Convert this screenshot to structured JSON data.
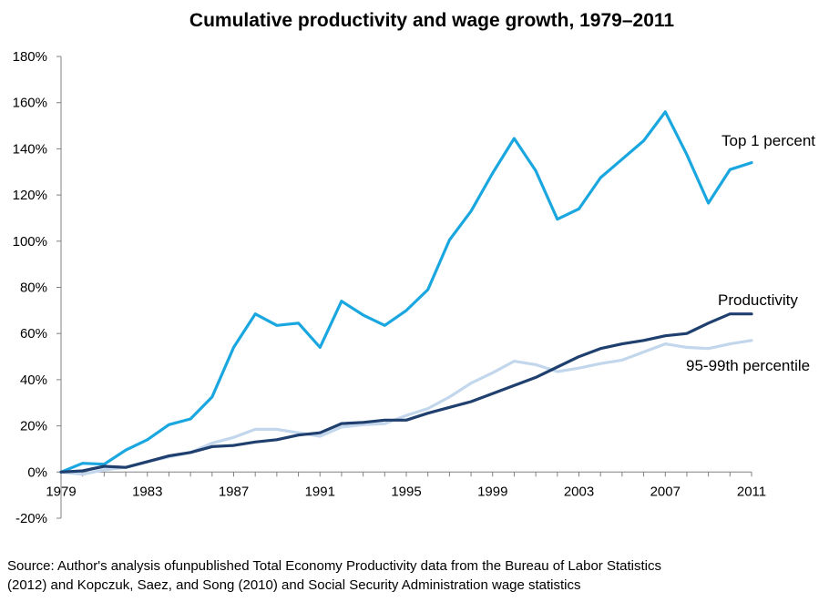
{
  "chart_data": {
    "type": "line",
    "title": "Cumulative productivity and wage growth, 1979–2011",
    "xlabel": "",
    "ylabel": "",
    "xlim": [
      1979,
      2011
    ],
    "ylim": [
      -20,
      180
    ],
    "x_ticks": [
      "1979",
      "1983",
      "1987",
      "1991",
      "1995",
      "1999",
      "2003",
      "2007",
      "2011"
    ],
    "y_ticks": [
      "-20%",
      "0%",
      "20%",
      "40%",
      "60%",
      "80%",
      "100%",
      "120%",
      "140%",
      "160%",
      "180%"
    ],
    "grid": false,
    "legend": "none (series labeled directly on chart)",
    "x": [
      1979,
      1980,
      1981,
      1982,
      1983,
      1984,
      1985,
      1986,
      1987,
      1988,
      1989,
      1990,
      1991,
      1992,
      1993,
      1994,
      1995,
      1996,
      1997,
      1998,
      1999,
      2000,
      2001,
      2002,
      2003,
      2004,
      2005,
      2006,
      2007,
      2008,
      2009,
      2010,
      2011
    ],
    "series": [
      {
        "name": "Top 1 percent",
        "color": "#1aa7e0",
        "values": [
          0,
          3.8,
          3.4,
          9.5,
          14,
          20.5,
          23,
          32.5,
          54,
          68.5,
          63.5,
          64.5,
          54,
          74,
          68,
          63.5,
          70,
          79,
          100.5,
          113,
          129.5,
          144.5,
          130.5,
          109.5,
          114,
          127.5,
          135.5,
          143.5,
          156,
          137.5,
          116.5,
          131,
          134
        ]
      },
      {
        "name": "Productivity",
        "color": "#1f3f6e",
        "values": [
          0,
          0.5,
          2.5,
          2,
          4.5,
          7,
          8.5,
          11,
          11.5,
          13,
          14,
          16,
          17,
          21,
          21.5,
          22.5,
          22.5,
          25.5,
          28,
          30.5,
          34,
          37.5,
          41,
          45.5,
          50,
          53.5,
          55.5,
          57,
          59,
          60,
          64.5,
          68.5,
          68.5
        ]
      },
      {
        "name": "95-99th percentile",
        "color": "#c2d6ec",
        "values": [
          0,
          -1,
          1,
          2,
          4.5,
          6.5,
          8.5,
          12.5,
          15,
          18.5,
          18.5,
          17,
          15.5,
          19.5,
          20.5,
          21,
          24.5,
          27.5,
          32.5,
          38.5,
          43,
          48,
          46.5,
          43.5,
          45,
          47,
          48.5,
          52,
          55.5,
          54,
          53.5,
          55.5,
          57
        ]
      }
    ]
  },
  "source_lines": [
    "Source: Author's analysis ofunpublished Total Economy Productivity data from the Bureau of Labor Statistics",
    "(2012) and Kopczuk, Saez, and Song (2010) and Social Security Administration wage statistics"
  ]
}
